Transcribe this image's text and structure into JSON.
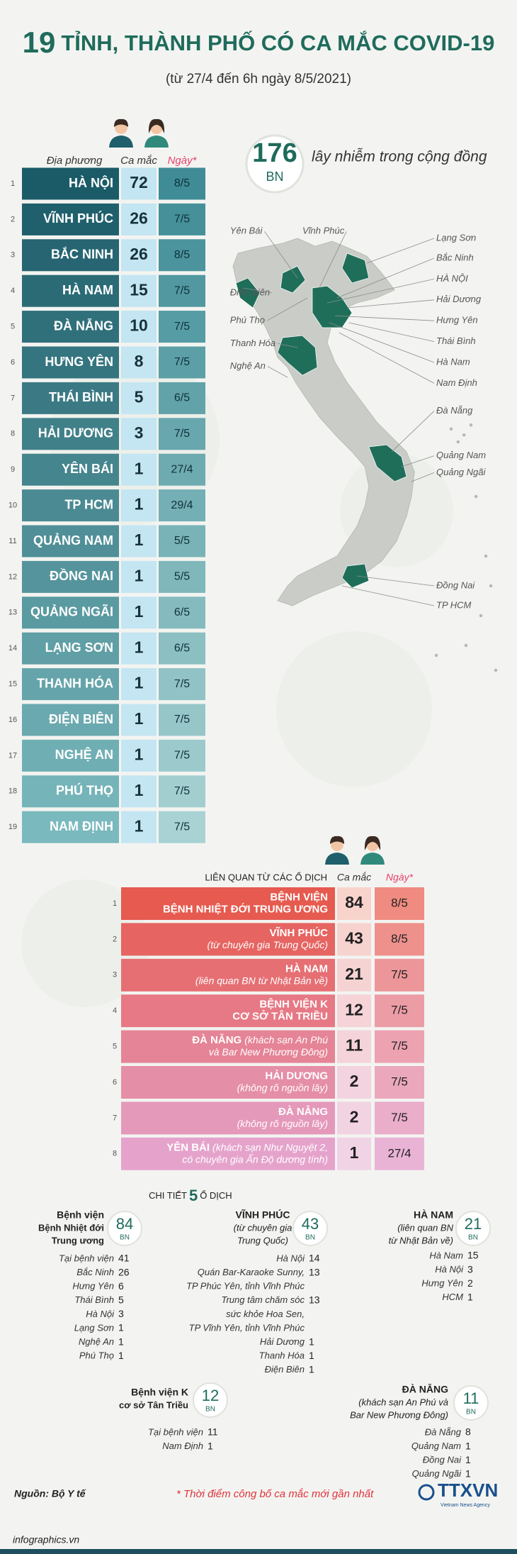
{
  "header": {
    "title_number": "19",
    "title": "TỈNH, THÀNH PHỐ CÓ CA MẮC COVID-19",
    "subtitle": "(từ 27/4 đến 6h ngày 8/5/2021)"
  },
  "provinces": {
    "columns": [
      "Địa phương",
      "Ca mắc",
      "Ngày*"
    ],
    "rows": [
      [
        1,
        "HÀ NỘI",
        72,
        "8/5"
      ],
      [
        2,
        "VĨNH PHÚC",
        26,
        "7/5"
      ],
      [
        3,
        "BẮC NINH",
        26,
        "8/5"
      ],
      [
        4,
        "HÀ NAM",
        15,
        "7/5"
      ],
      [
        5,
        "ĐÀ NẴNG",
        10,
        "7/5"
      ],
      [
        6,
        "HƯNG YÊN",
        8,
        "7/5"
      ],
      [
        7,
        "THÁI BÌNH",
        5,
        "6/5"
      ],
      [
        8,
        "HẢI DƯƠNG",
        3,
        "7/5"
      ],
      [
        9,
        "YÊN BÁI",
        1,
        "27/4"
      ],
      [
        10,
        "TP HCM",
        1,
        "29/4"
      ],
      [
        11,
        "QUẢNG NAM",
        1,
        "5/5"
      ],
      [
        12,
        "ĐỒNG NAI",
        1,
        "5/5"
      ],
      [
        13,
        "QUẢNG NGÃI",
        1,
        "6/5"
      ],
      [
        14,
        "LẠNG SƠN",
        1,
        "6/5"
      ],
      [
        15,
        "THANH HÓA",
        1,
        "7/5"
      ],
      [
        16,
        "ĐIỆN BIÊN",
        1,
        "7/5"
      ],
      [
        17,
        "NGHỆ AN",
        1,
        "7/5"
      ],
      [
        18,
        "PHÚ THỌ",
        1,
        "7/5"
      ],
      [
        19,
        "NAM ĐỊNH",
        1,
        "7/5"
      ]
    ]
  },
  "community": {
    "count": 176,
    "unit": "BN",
    "label": "lây nhiễm trong cộng đồng"
  },
  "map": {
    "labels": [
      "Yên Bái",
      "Vĩnh Phúc",
      "Lạng Sơn",
      "Bắc Ninh",
      "HÀ NỘI",
      "Hải Dương",
      "Hưng Yên",
      "Thái Bình",
      "Hà Nam",
      "Nam Định",
      "Điện Biên",
      "Phú Thọ",
      "Thanh Hóa",
      "Nghệ An",
      "Đà Nẵng",
      "Quảng Nam",
      "Quảng Ngãi",
      "Đồng Nai",
      "TP HCM"
    ]
  },
  "clusters_table": {
    "columns": [
      "LIÊN QUAN TỪ CÁC Ổ DỊCH",
      "Ca mắc",
      "Ngày*"
    ],
    "rows": [
      {
        "index": 1,
        "name": [
          "BỆNH VIỆN",
          "BỆNH NHIỆT ĐỚI TRUNG ƯƠNG"
        ],
        "cases": 84,
        "date": "8/5"
      },
      {
        "index": 2,
        "name": [
          "VĨNH PHÚC"
        ],
        "note": [
          "(từ chuyên gia Trung Quốc)"
        ],
        "cases": 43,
        "date": "8/5"
      },
      {
        "index": 3,
        "name": [
          "HÀ NAM"
        ],
        "note": [
          "(liên quan BN từ Nhật Bản về)"
        ],
        "cases": 21,
        "date": "7/5"
      },
      {
        "index": 4,
        "name": [
          "BỆNH VIỆN K",
          "CƠ SỞ TÂN TRIỀU"
        ],
        "cases": 12,
        "date": "7/5"
      },
      {
        "index": 5,
        "name": [
          "ĐÀ NẴNG"
        ],
        "note": [
          "(khách sạn An Phú",
          "và Bar New Phương Đông)"
        ],
        "cases": 11,
        "date": "7/5"
      },
      {
        "index": 6,
        "name": [
          "HẢI DƯƠNG"
        ],
        "note": [
          "(không rõ nguồn lây)"
        ],
        "cases": 2,
        "date": "7/5"
      },
      {
        "index": 7,
        "name": [
          "ĐÀ NẴNG"
        ],
        "note": [
          "(không rõ nguồn lây)"
        ],
        "cases": 2,
        "date": "7/5"
      },
      {
        "index": 8,
        "name": [
          "YÊN BÁI"
        ],
        "note": [
          "(khách sạn Như Nguyệt 2,",
          "có chuyên gia Ấn Độ dương tính)"
        ],
        "cases": 1,
        "date": "27/4"
      }
    ]
  },
  "details": {
    "title": [
      "CHI TIẾT",
      "5",
      "Ổ DỊCH"
    ],
    "clusters": [
      {
        "name": [
          "Bệnh viện",
          "Bệnh Nhiệt đới",
          "Trung ương"
        ],
        "total": 84,
        "unit": "BN",
        "items": [
          {
            "label": [
              "Tại bệnh viện"
            ],
            "count": 41
          },
          {
            "label": [
              "Bắc Ninh"
            ],
            "count": 26
          },
          {
            "label": [
              "Hưng Yên"
            ],
            "count": 6
          },
          {
            "label": [
              "Thái Bình"
            ],
            "count": 5
          },
          {
            "label": [
              "Hà Nội"
            ],
            "count": 3
          },
          {
            "label": [
              "Lạng Sơn"
            ],
            "count": 1
          },
          {
            "label": [
              "Nghệ An"
            ],
            "count": 1
          },
          {
            "label": [
              "Phú Thọ"
            ],
            "count": 1
          }
        ]
      },
      {
        "name": [
          "VĨNH PHÚC",
          "(từ chuyên gia",
          "Trung Quốc)"
        ],
        "total": 43,
        "unit": "BN",
        "items": [
          {
            "label": [
              "Hà Nội"
            ],
            "count": 14
          },
          {
            "label": [
              "Quán Bar-Karaoke Sunny,",
              "TP Phúc Yên, tỉnh Vĩnh Phúc"
            ],
            "count": 13
          },
          {
            "label": [
              "Trung tâm chăm sóc",
              "sức khỏe Hoa Sen,",
              "TP Vĩnh Yên, tỉnh Vĩnh Phúc"
            ],
            "count": 13
          },
          {
            "label": [
              "Hải Dương"
            ],
            "count": 1
          },
          {
            "label": [
              "Thanh Hóa"
            ],
            "count": 1
          },
          {
            "label": [
              "Điện Biên"
            ],
            "count": 1
          }
        ]
      },
      {
        "name": [
          "HÀ NAM",
          "(liên quan BN",
          "từ Nhật Bản về)"
        ],
        "total": 21,
        "unit": "BN",
        "items": [
          {
            "label": [
              "Hà Nam"
            ],
            "count": 15
          },
          {
            "label": [
              "Hà Nội"
            ],
            "count": 3
          },
          {
            "label": [
              "Hưng Yên"
            ],
            "count": 2
          },
          {
            "label": [
              "HCM"
            ],
            "count": 1
          }
        ]
      },
      {
        "name": [
          "Bệnh viện K",
          "cơ sở Tân Triều"
        ],
        "total": 12,
        "unit": "BN",
        "items": [
          {
            "label": [
              "Tại bệnh viện"
            ],
            "count": 11
          },
          {
            "label": [
              "Nam Định"
            ],
            "count": 1
          }
        ]
      },
      {
        "name": [
          "ĐÀ NẴNG",
          "(khách sạn An Phú và",
          "Bar New Phương Đông)"
        ],
        "total": 11,
        "unit": "BN",
        "items": [
          {
            "label": [
              "Đà Nẵng"
            ],
            "count": 8
          },
          {
            "label": [
              "Quảng Nam"
            ],
            "count": 1
          },
          {
            "label": [
              "Đồng Nai"
            ],
            "count": 1
          },
          {
            "label": [
              "Quảng Ngãi"
            ],
            "count": 1
          }
        ]
      }
    ]
  },
  "footer": {
    "source": "Nguồn: Bộ Y tế",
    "note": "* Thời điểm công bố ca mắc mới gần nhất",
    "logo": "TTXVN",
    "logo_sub": "Vietnam News Agency",
    "site": "infographics.vn"
  }
}
